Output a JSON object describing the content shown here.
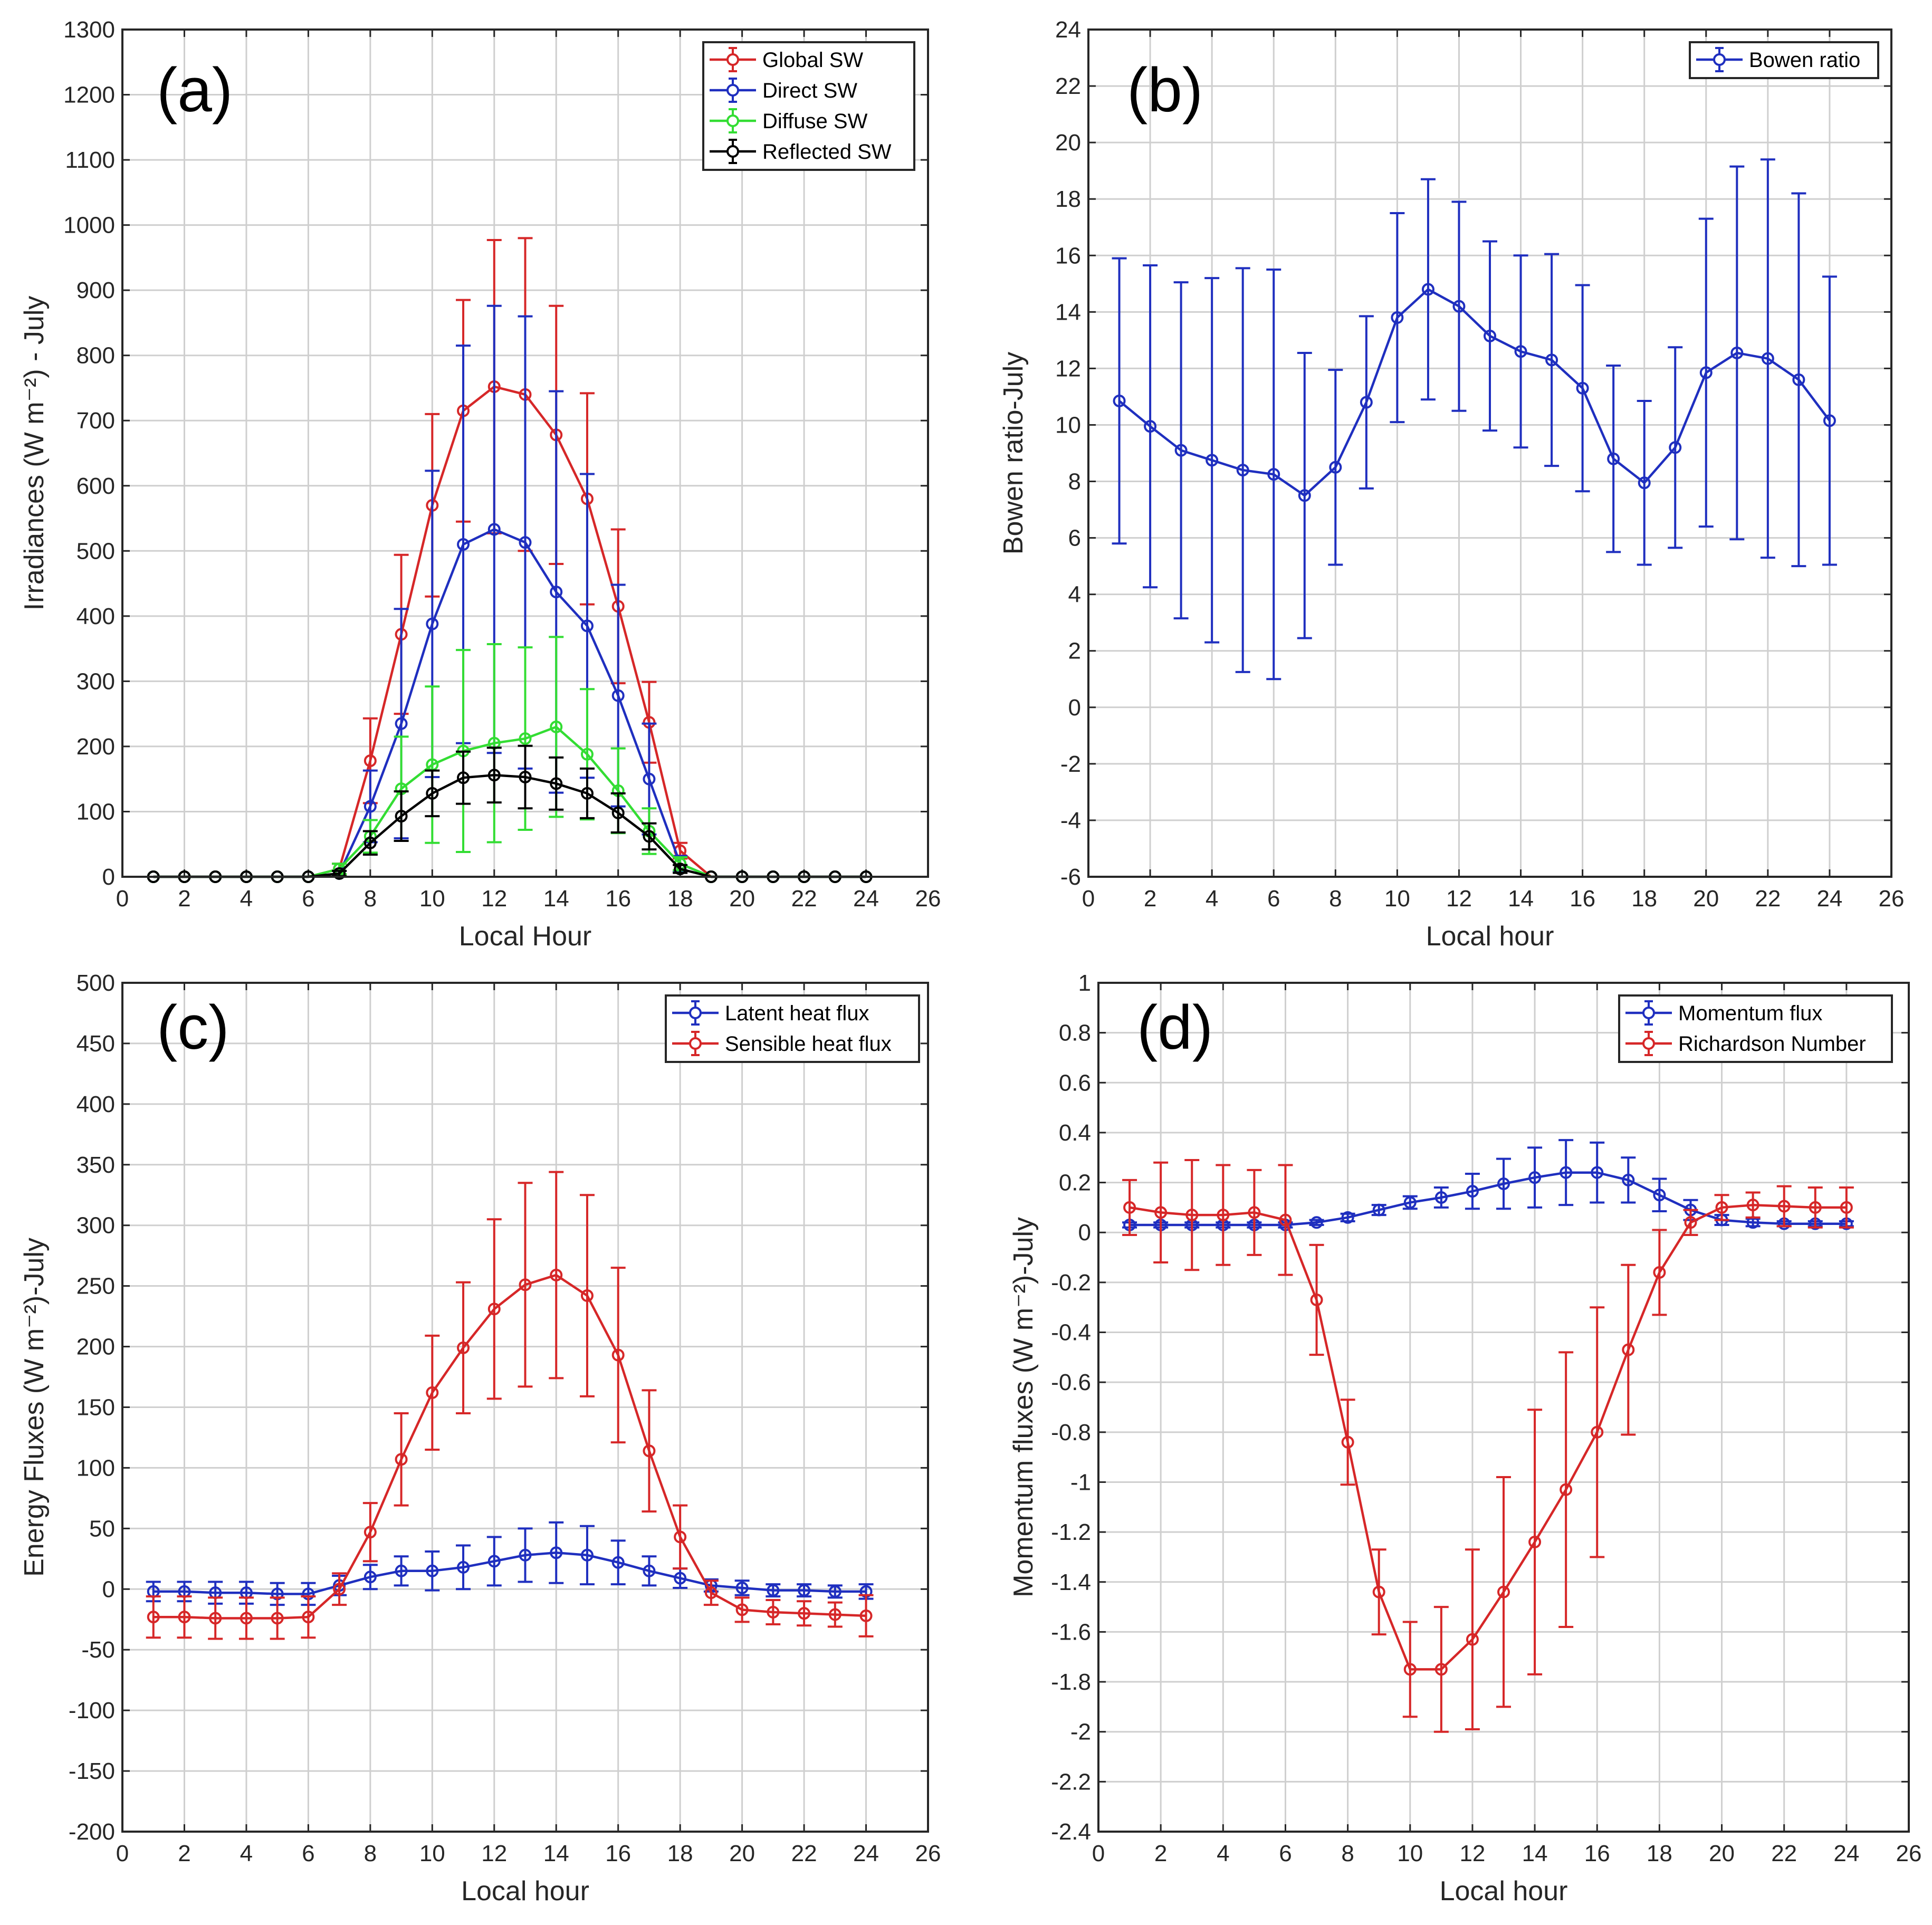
{
  "chart_data": [
    {
      "type": "line",
      "panel_label": "(a)",
      "xlabel": "Local Hour",
      "ylabel": "Irradiances (W m⁻²) - July",
      "xlim": [
        0,
        26
      ],
      "ylim": [
        0,
        1300
      ],
      "xticks": [
        0,
        2,
        4,
        6,
        8,
        10,
        12,
        14,
        16,
        18,
        20,
        22,
        24,
        26
      ],
      "yticks": [
        0,
        100,
        200,
        300,
        400,
        500,
        600,
        700,
        800,
        900,
        1000,
        1100,
        1200,
        1300
      ],
      "grid": true,
      "error_bars": true,
      "legend_position": "top-right",
      "x": [
        1,
        2,
        3,
        4,
        5,
        6,
        7,
        8,
        9,
        10,
        11,
        12,
        13,
        14,
        15,
        16,
        17,
        18,
        19,
        20,
        21,
        22,
        23,
        24
      ],
      "series": [
        {
          "name": "Global SW",
          "color": "#d62728",
          "values": [
            0,
            0,
            0,
            0,
            0,
            0,
            12,
            178,
            372,
            570,
            715,
            752,
            740,
            678,
            580,
            415,
            237,
            40,
            0,
            0,
            0,
            0,
            0,
            0
          ],
          "errors": [
            0,
            0,
            0,
            0,
            0,
            0,
            8,
            65,
            122,
            140,
            170,
            225,
            240,
            198,
            162,
            118,
            62,
            12,
            0,
            0,
            0,
            0,
            0,
            0
          ]
        },
        {
          "name": "Direct SW",
          "color": "#1f2fbf",
          "values": [
            0,
            0,
            0,
            0,
            0,
            0,
            5,
            108,
            235,
            388,
            510,
            533,
            513,
            437,
            385,
            278,
            150,
            20,
            0,
            0,
            0,
            0,
            0,
            0
          ],
          "errors": [
            0,
            0,
            0,
            0,
            0,
            0,
            4,
            55,
            176,
            235,
            305,
            343,
            347,
            308,
            233,
            170,
            85,
            12,
            0,
            0,
            0,
            0,
            0,
            0
          ]
        },
        {
          "name": "Diffuse SW",
          "color": "#33dd33",
          "values": [
            0,
            0,
            0,
            0,
            0,
            0,
            12,
            62,
            135,
            172,
            193,
            205,
            212,
            230,
            188,
            132,
            70,
            20,
            0,
            0,
            0,
            0,
            0,
            0
          ],
          "errors": [
            0,
            0,
            0,
            0,
            0,
            0,
            8,
            25,
            80,
            120,
            155,
            152,
            140,
            138,
            100,
            65,
            35,
            10,
            0,
            0,
            0,
            0,
            0,
            0
          ]
        },
        {
          "name": "Reflected SW",
          "color": "#000000",
          "values": [
            0,
            0,
            0,
            0,
            0,
            0,
            5,
            52,
            93,
            128,
            152,
            156,
            153,
            143,
            128,
            98,
            62,
            12,
            0,
            0,
            0,
            0,
            0,
            0
          ],
          "errors": [
            0,
            0,
            0,
            0,
            0,
            0,
            4,
            18,
            38,
            35,
            40,
            42,
            48,
            40,
            38,
            30,
            20,
            6,
            0,
            0,
            0,
            0,
            0,
            0
          ]
        }
      ]
    },
    {
      "type": "line",
      "panel_label": "(b)",
      "xlabel": "Local hour",
      "ylabel": "Bowen ratio-July",
      "xlim": [
        0,
        26
      ],
      "ylim": [
        -6,
        24
      ],
      "xticks": [
        0,
        2,
        4,
        6,
        8,
        10,
        12,
        14,
        16,
        18,
        20,
        22,
        24,
        26
      ],
      "yticks": [
        -6,
        -4,
        -2,
        0,
        2,
        4,
        6,
        8,
        10,
        12,
        14,
        16,
        18,
        20,
        22,
        24
      ],
      "grid": true,
      "error_bars": true,
      "legend_position": "top-right",
      "x": [
        1,
        2,
        3,
        4,
        5,
        6,
        7,
        8,
        9,
        10,
        11,
        12,
        13,
        14,
        15,
        16,
        17,
        18,
        19,
        20,
        21,
        22,
        23,
        24
      ],
      "series": [
        {
          "name": "Bowen ratio",
          "color": "#1f2fbf",
          "values": [
            10.85,
            9.95,
            9.1,
            8.75,
            8.4,
            8.25,
            7.5,
            8.5,
            10.8,
            13.8,
            14.8,
            14.2,
            13.15,
            12.6,
            12.3,
            11.3,
            8.8,
            7.95,
            9.2,
            11.85,
            12.55,
            12.35,
            11.6,
            10.15
          ],
          "errors": [
            5.05,
            5.7,
            5.95,
            6.45,
            7.15,
            7.25,
            5.05,
            3.45,
            3.05,
            3.7,
            3.9,
            3.7,
            3.35,
            3.4,
            3.75,
            3.65,
            3.3,
            2.9,
            3.55,
            5.45,
            6.6,
            7.05,
            6.6,
            5.1
          ]
        }
      ]
    },
    {
      "type": "line",
      "panel_label": "(c)",
      "xlabel": "Local hour",
      "ylabel": "Energy Fluxes (W m⁻²)-July",
      "xlim": [
        0,
        26
      ],
      "ylim": [
        -200,
        500
      ],
      "xticks": [
        0,
        2,
        4,
        6,
        8,
        10,
        12,
        14,
        16,
        18,
        20,
        22,
        24,
        26
      ],
      "yticks": [
        -200,
        -150,
        -100,
        -50,
        0,
        50,
        100,
        150,
        200,
        250,
        300,
        350,
        400,
        450,
        500
      ],
      "grid": true,
      "error_bars": true,
      "legend_position": "top-right",
      "x": [
        1,
        2,
        3,
        4,
        5,
        6,
        7,
        8,
        9,
        10,
        11,
        12,
        13,
        14,
        15,
        16,
        17,
        18,
        19,
        20,
        21,
        22,
        23,
        24
      ],
      "series": [
        {
          "name": "Latent heat flux",
          "color": "#1f2fbf",
          "values": [
            -2,
            -2,
            -3,
            -3,
            -4,
            -4,
            3,
            10,
            15,
            15,
            18,
            23,
            28,
            30,
            28,
            22,
            15,
            9,
            3,
            1,
            -1,
            -1,
            -2,
            -2
          ],
          "errors": [
            8,
            8,
            9,
            9,
            9,
            9,
            8,
            10,
            12,
            16,
            18,
            20,
            22,
            25,
            24,
            18,
            12,
            8,
            5,
            6,
            5,
            5,
            5,
            6
          ]
        },
        {
          "name": "Sensible heat flux",
          "color": "#d62728",
          "values": [
            -23,
            -23,
            -24,
            -24,
            -24,
            -23,
            0,
            47,
            107,
            162,
            199,
            231,
            251,
            259,
            242,
            193,
            114,
            43,
            -3,
            -17,
            -19,
            -20,
            -21,
            -22
          ],
          "errors": [
            17,
            17,
            17,
            17,
            17,
            17,
            13,
            24,
            38,
            47,
            54,
            74,
            84,
            85,
            83,
            72,
            50,
            26,
            10,
            10,
            10,
            10,
            10,
            17
          ]
        }
      ]
    },
    {
      "type": "line",
      "panel_label": "(d)",
      "xlabel": "Local hour",
      "ylabel": "Momentum fluxes (W m⁻²)-July",
      "xlim": [
        0,
        26
      ],
      "ylim": [
        -2.4,
        1
      ],
      "xticks": [
        0,
        2,
        4,
        6,
        8,
        10,
        12,
        14,
        16,
        18,
        20,
        22,
        24,
        26
      ],
      "yticks": [
        -2.4,
        -2.2,
        -2,
        -1.8,
        -1.6,
        -1.4,
        -1.2,
        -1,
        -0.8,
        -0.6,
        -0.4,
        -0.2,
        0,
        0.2,
        0.4,
        0.6,
        0.8,
        1
      ],
      "grid": true,
      "error_bars": true,
      "legend_position": "top-right",
      "x": [
        1,
        2,
        3,
        4,
        5,
        6,
        7,
        8,
        9,
        10,
        11,
        12,
        13,
        14,
        15,
        16,
        17,
        18,
        19,
        20,
        21,
        22,
        23,
        24
      ],
      "series": [
        {
          "name": "Momentum flux",
          "color": "#1f2fbf",
          "values": [
            0.03,
            0.03,
            0.03,
            0.03,
            0.03,
            0.03,
            0.04,
            0.06,
            0.09,
            0.12,
            0.14,
            0.165,
            0.195,
            0.22,
            0.24,
            0.24,
            0.21,
            0.15,
            0.09,
            0.05,
            0.04,
            0.035,
            0.035,
            0.035
          ],
          "errors": [
            0.01,
            0.01,
            0.01,
            0.01,
            0.01,
            0.01,
            0.01,
            0.015,
            0.02,
            0.025,
            0.04,
            0.07,
            0.1,
            0.12,
            0.13,
            0.12,
            0.09,
            0.065,
            0.04,
            0.02,
            0.015,
            0.01,
            0.01,
            0.01
          ]
        },
        {
          "name": "Richardson Number",
          "color": "#d62728",
          "values": [
            0.1,
            0.08,
            0.07,
            0.07,
            0.08,
            0.05,
            -0.27,
            -0.84,
            -1.44,
            -1.75,
            -1.75,
            -1.63,
            -1.44,
            -1.24,
            -1.03,
            -0.8,
            -0.47,
            -0.16,
            0.04,
            0.1,
            0.11,
            0.105,
            0.1,
            0.1
          ],
          "errors": [
            0.11,
            0.2,
            0.22,
            0.2,
            0.17,
            0.22,
            0.22,
            0.17,
            0.17,
            0.19,
            0.25,
            0.36,
            0.46,
            0.53,
            0.55,
            0.5,
            0.34,
            0.17,
            0.05,
            0.05,
            0.05,
            0.08,
            0.08,
            0.08
          ]
        }
      ]
    }
  ]
}
